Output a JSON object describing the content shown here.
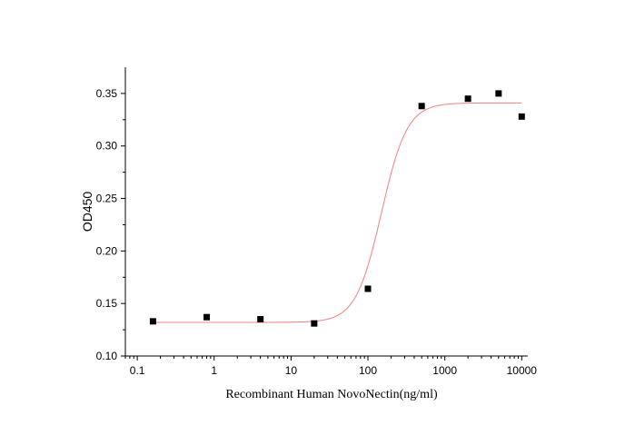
{
  "chart_data": {
    "type": "scatter",
    "xlabel": "Recombinant Human NovoNectin(ng/ml)",
    "ylabel": "OD450",
    "x_scale": "log",
    "xlim": [
      0.07,
      12000
    ],
    "ylim": [
      0.1,
      0.375
    ],
    "x_ticks": [
      0.1,
      1,
      10,
      100,
      1000,
      10000
    ],
    "x_tick_labels": [
      "0.1",
      "1",
      "10",
      "100",
      "1000",
      "10000"
    ],
    "y_ticks": [
      0.1,
      0.15,
      0.2,
      0.25,
      0.3,
      0.35
    ],
    "y_tick_labels": [
      "0.10",
      "0.15",
      "0.20",
      "0.25",
      "0.30",
      "0.35"
    ],
    "grid": false,
    "series": [
      {
        "marker": "square",
        "color": "#000000",
        "x": [
          0.16,
          0.8,
          4,
          20,
          100,
          500,
          2000,
          5000,
          10000
        ],
        "y": [
          0.133,
          0.137,
          0.135,
          0.131,
          0.164,
          0.338,
          0.345,
          0.35,
          0.328
        ]
      }
    ],
    "fit": {
      "model": "4PL",
      "color": "#f08080",
      "bottom": 0.132,
      "top": 0.341,
      "ec50": 150,
      "hill": 2.6,
      "x_range": [
        0.16,
        10000
      ]
    }
  }
}
